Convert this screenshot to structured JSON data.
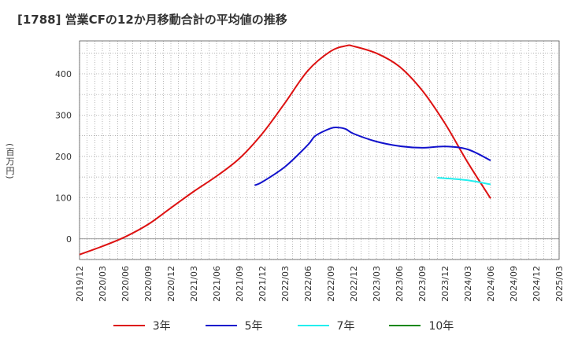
{
  "chart_data": {
    "type": "line",
    "title": "[1788]  営業CFの12か月移動合計の平均値の推移",
    "xlabel": "",
    "ylabel": "(百万円)",
    "ylim": [
      -50,
      480
    ],
    "yticks": [
      "0",
      "100",
      "200",
      "300",
      "400"
    ],
    "xticks": [
      "2019/12",
      "2020/03",
      "2020/06",
      "2020/09",
      "2020/12",
      "2021/03",
      "2021/06",
      "2021/09",
      "2021/12",
      "2022/03",
      "2022/06",
      "2022/09",
      "2022/12",
      "2023/03",
      "2023/06",
      "2023/09",
      "2023/12",
      "2024/03",
      "2024/06",
      "2024/09",
      "2024/12",
      "2025/03"
    ],
    "grid": true,
    "legend_position": "bottom",
    "series": [
      {
        "name": "3年",
        "color": "#dd1111",
        "x": [
          "2019/12",
          "2020/03",
          "2020/06",
          "2020/09",
          "2020/12",
          "2021/03",
          "2021/06",
          "2021/09",
          "2021/12",
          "2022/03",
          "2022/06",
          "2022/09",
          "2022/11",
          "2022/12",
          "2023/03",
          "2023/06",
          "2023/09",
          "2023/12",
          "2024/03",
          "2024/06"
        ],
        "values": [
          -38,
          -18,
          5,
          35,
          75,
          115,
          152,
          195,
          255,
          330,
          408,
          455,
          468,
          467,
          450,
          418,
          360,
          280,
          185,
          98
        ]
      },
      {
        "name": "5年",
        "color": "#1111cc",
        "x": [
          "2021/11",
          "2021/12",
          "2022/03",
          "2022/06",
          "2022/07",
          "2022/09",
          "2022/10",
          "2022/11",
          "2022/12",
          "2023/03",
          "2023/06",
          "2023/09",
          "2023/12",
          "2024/03",
          "2024/06"
        ],
        "values": [
          130,
          138,
          175,
          228,
          250,
          268,
          270,
          266,
          255,
          236,
          225,
          221,
          224,
          217,
          190
        ]
      },
      {
        "name": "7年",
        "color": "#22eeee",
        "x": [
          "2023/11",
          "2023/12",
          "2024/03",
          "2024/06"
        ],
        "values": [
          148,
          147,
          142,
          132
        ]
      },
      {
        "name": "10年",
        "color": "#118811",
        "x": [],
        "values": []
      }
    ]
  }
}
